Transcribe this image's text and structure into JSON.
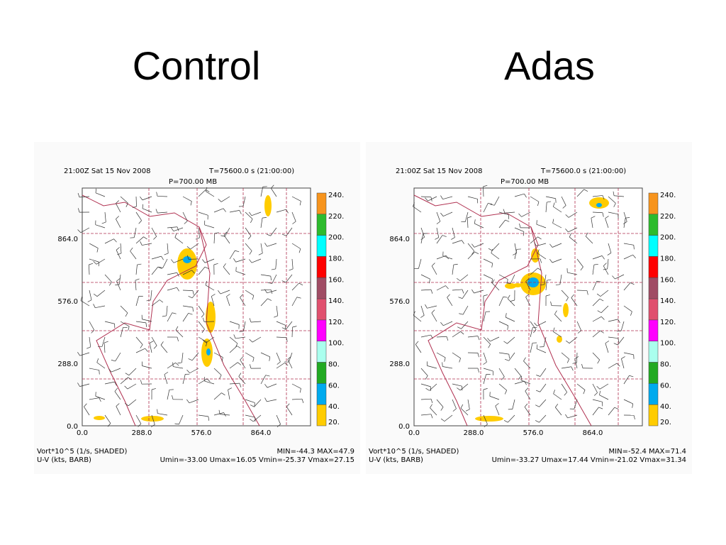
{
  "slide": {
    "titles": [
      "Control",
      "Adas"
    ]
  },
  "panels": [
    {
      "header": {
        "time": "21:00Z Sat 15 Nov 2008",
        "t": "T=75600.0 s (21:00:00)",
        "p": "P=700.00 MB"
      },
      "y_ticks": [
        "864.0",
        "576.0",
        "288.0",
        "0.0"
      ],
      "x_ticks": [
        "0.0",
        "288.0",
        "576.0",
        "864.0"
      ],
      "colorbar": [
        "240.",
        "220.",
        "200.",
        "180.",
        "160.",
        "140.",
        "120.",
        "100.",
        "80.",
        "60.",
        "40.",
        "20."
      ],
      "footer": {
        "field1": "Vort*10^5 (1/s, SHADED)",
        "stats1": "MIN=-44.3 MAX=47.9",
        "field2": "U-V (kts, BARB)",
        "stats2": "Umin=-33.00 Umax=16.05 Vmin=-25.37 Vmax=27.15"
      }
    },
    {
      "header": {
        "time": "21:00Z Sat 15 Nov 2008",
        "t": "T=75600.0 s (21:00:00)",
        "p": "P=700.00 MB"
      },
      "y_ticks": [
        "864.0",
        "576.0",
        "288.0",
        "0.0"
      ],
      "x_ticks": [
        "0.0",
        "288.0",
        "576.0",
        "864.0"
      ],
      "colorbar": [
        "240.",
        "220.",
        "200.",
        "180.",
        "160.",
        "140.",
        "120.",
        "100.",
        "80.",
        "60.",
        "40.",
        "20."
      ],
      "footer": {
        "field1": "Vort*10^5 (1/s, SHADED)",
        "stats1": "MIN=-52.4 MAX=71.4",
        "field2": "U-V (kts, BARB)",
        "stats2": "Umin=-33.27 Umax=17.44 Vmin=-21.02 Vmax=31.34"
      }
    }
  ]
}
